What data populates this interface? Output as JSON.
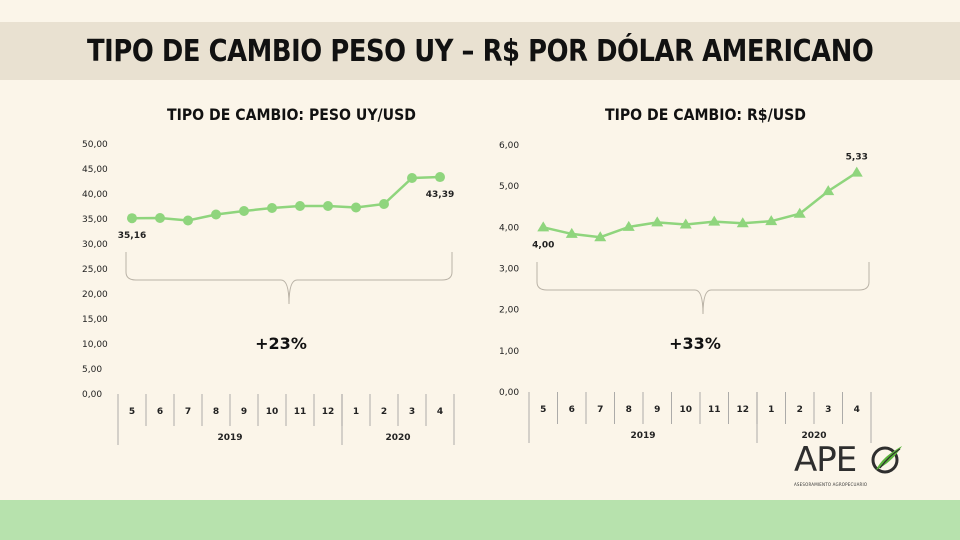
{
  "page": {
    "title": "TIPO DE CAMBIO PESO UY – R$ POR DÓLAR AMERICANO",
    "logo_text": "APE",
    "logo_subtitle": "ASESORAMIENTO AGROPECUARIO"
  },
  "colors": {
    "line": "#8fd57d",
    "title_band": "#e9e1d1",
    "background": "#fbf5e9",
    "bottom_band": "#b7e2ad",
    "brace": "#b9b2a6",
    "logo_accent": "#5ab33c"
  },
  "chart_data": [
    {
      "type": "line",
      "title": "TIPO DE CAMBIO: PESO UY/USD",
      "marker": "circle",
      "categories": [
        "5",
        "6",
        "7",
        "8",
        "9",
        "10",
        "11",
        "12",
        "1",
        "2",
        "3",
        "4"
      ],
      "groups": [
        {
          "label": "2019",
          "count": 8
        },
        {
          "label": "2020",
          "count": 4
        }
      ],
      "values": [
        35.16,
        35.2,
        34.7,
        35.9,
        36.6,
        37.2,
        37.6,
        37.6,
        37.3,
        38.0,
        43.2,
        43.39
      ],
      "data_labels": [
        {
          "index": 0,
          "text": "35,16"
        },
        {
          "index": 11,
          "text": "43,39"
        }
      ],
      "ylim": [
        0,
        50
      ],
      "yticks": [
        "0,00",
        "5,00",
        "10,00",
        "15,00",
        "20,00",
        "25,00",
        "30,00",
        "35,00",
        "40,00",
        "45,00",
        "50,00"
      ],
      "grid": false,
      "annotation": "+23%"
    },
    {
      "type": "line",
      "title": "TIPO DE CAMBIO: R$/USD",
      "marker": "triangle",
      "categories": [
        "5",
        "6",
        "7",
        "8",
        "9",
        "10",
        "11",
        "12",
        "1",
        "2",
        "3",
        "4"
      ],
      "groups": [
        {
          "label": "2019",
          "count": 8
        },
        {
          "label": "2020",
          "count": 4
        }
      ],
      "values": [
        4.0,
        3.84,
        3.76,
        4.01,
        4.12,
        4.07,
        4.14,
        4.1,
        4.15,
        4.33,
        4.88,
        5.33
      ],
      "data_labels": [
        {
          "index": 0,
          "text": "4,00"
        },
        {
          "index": 11,
          "text": "5,33"
        }
      ],
      "ylim": [
        0,
        6
      ],
      "yticks": [
        "0,00",
        "1,00",
        "2,00",
        "3,00",
        "4,00",
        "5,00",
        "6,00"
      ],
      "grid": false,
      "annotation": "+33%"
    }
  ]
}
